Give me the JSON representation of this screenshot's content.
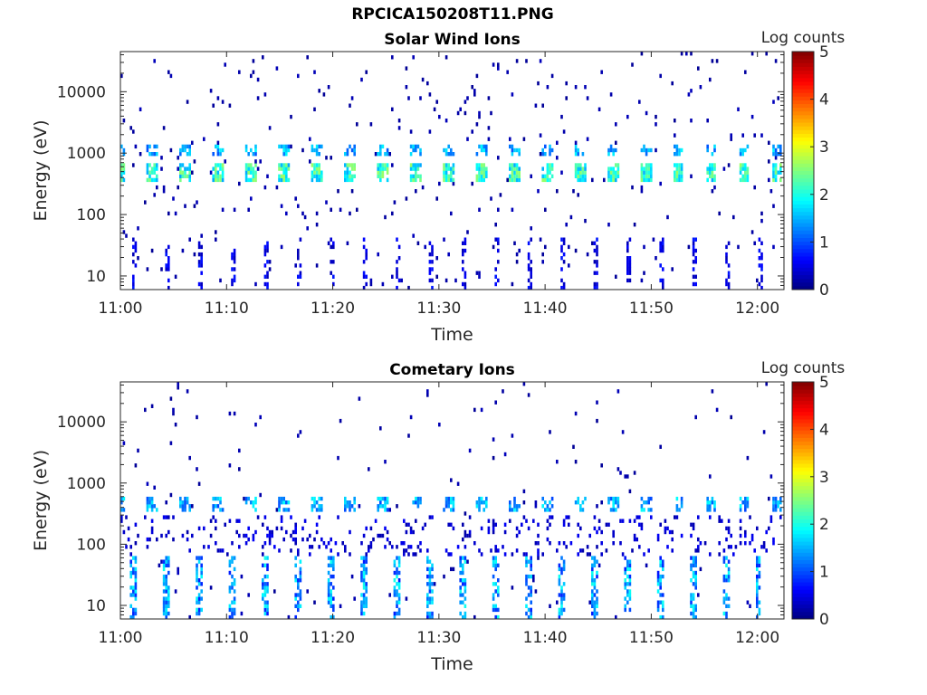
{
  "figure_title": "RPCICA150208T11.PNG",
  "chart_data": [
    {
      "type": "heatmap",
      "title": "Solar Wind Ions",
      "xlabel": "Time",
      "ylabel": "Energy (eV)",
      "x_ticks": [
        "11:00",
        "11:10",
        "11:20",
        "11:30",
        "11:40",
        "11:50",
        "12:00"
      ],
      "x_tick_minutes": [
        0,
        10,
        20,
        30,
        40,
        50,
        60
      ],
      "xlim_minutes": [
        0,
        62.5
      ],
      "y_scale": "log",
      "y_ticks": [
        "10",
        "100",
        "1000",
        "10000"
      ],
      "y_tick_values": [
        10,
        100,
        1000,
        10000
      ],
      "ylim": [
        6,
        45000
      ],
      "colorbar": {
        "label": "Log counts",
        "range": [
          0,
          5
        ],
        "ticks": [
          "0",
          "1",
          "2",
          "3",
          "4",
          "5"
        ],
        "colormap": "jet"
      },
      "features": {
        "sweep_period_minutes": 3.1,
        "main_band_eV": [
          350,
          650
        ],
        "main_band_log_counts": 2.4,
        "secondary_band_eV": [
          900,
          1300
        ],
        "secondary_band_log_counts": 1.7,
        "low_energy_bursts_eV": [
          6,
          40
        ],
        "low_energy_log_counts": 0.5,
        "sparse_background_log_counts": 0.2
      }
    },
    {
      "type": "heatmap",
      "title": "Cometary Ions",
      "xlabel": "Time",
      "ylabel": "Energy (eV)",
      "x_ticks": [
        "11:00",
        "11:10",
        "11:20",
        "11:30",
        "11:40",
        "11:50",
        "12:00"
      ],
      "x_tick_minutes": [
        0,
        10,
        20,
        30,
        40,
        50,
        60
      ],
      "xlim_minutes": [
        0,
        62.5
      ],
      "y_scale": "log",
      "y_ticks": [
        "10",
        "100",
        "1000",
        "10000"
      ],
      "y_tick_values": [
        10,
        100,
        1000,
        10000
      ],
      "ylim": [
        6,
        45000
      ],
      "colorbar": {
        "label": "Log counts",
        "range": [
          0,
          5
        ],
        "ticks": [
          "0",
          "1",
          "2",
          "3",
          "4",
          "5"
        ],
        "colormap": "jet"
      },
      "features": {
        "sweep_period_minutes": 3.1,
        "main_band_eV": [
          350,
          600
        ],
        "main_band_log_counts": 1.6,
        "scatter_band_eV": [
          60,
          300
        ],
        "scatter_band_log_counts": 0.4,
        "low_energy_columns_eV": [
          6,
          60
        ],
        "low_energy_log_counts": 1.8,
        "sparse_background_log_counts": 0.2
      }
    }
  ]
}
